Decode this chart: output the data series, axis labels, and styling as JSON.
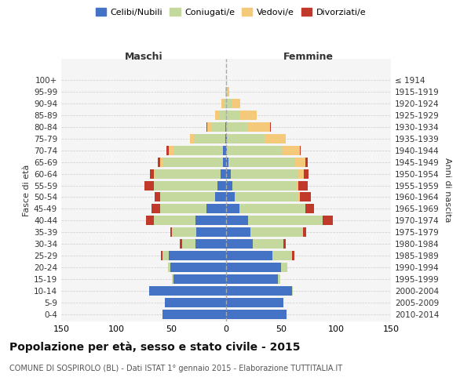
{
  "age_groups": [
    "0-4",
    "5-9",
    "10-14",
    "15-19",
    "20-24",
    "25-29",
    "30-34",
    "35-39",
    "40-44",
    "45-49",
    "50-54",
    "55-59",
    "60-64",
    "65-69",
    "70-74",
    "75-79",
    "80-84",
    "85-89",
    "90-94",
    "95-99",
    "100+"
  ],
  "birth_years": [
    "2010-2014",
    "2005-2009",
    "2000-2004",
    "1995-1999",
    "1990-1994",
    "1985-1989",
    "1980-1984",
    "1975-1979",
    "1970-1974",
    "1965-1969",
    "1960-1964",
    "1955-1959",
    "1950-1954",
    "1945-1949",
    "1940-1944",
    "1935-1939",
    "1930-1934",
    "1925-1929",
    "1920-1924",
    "1915-1919",
    "≤ 1914"
  ],
  "colors": {
    "celibi": "#4472C4",
    "coniugati": "#c5d89e",
    "vedovi": "#f5c97a",
    "divorziati": "#c0392b"
  },
  "males": {
    "celibi": [
      58,
      56,
      70,
      48,
      51,
      52,
      28,
      27,
      28,
      18,
      10,
      8,
      5,
      3,
      3,
      1,
      1,
      0,
      0,
      0,
      0
    ],
    "coniugati": [
      0,
      0,
      0,
      1,
      2,
      6,
      12,
      22,
      38,
      42,
      50,
      58,
      60,
      55,
      45,
      28,
      12,
      6,
      2,
      0,
      0
    ],
    "vedovi": [
      0,
      0,
      0,
      0,
      0,
      0,
      0,
      0,
      0,
      0,
      0,
      0,
      1,
      2,
      4,
      4,
      4,
      4,
      2,
      1,
      0
    ],
    "divorziati": [
      0,
      0,
      0,
      0,
      0,
      1,
      2,
      2,
      7,
      8,
      5,
      8,
      3,
      2,
      2,
      0,
      1,
      0,
      0,
      0,
      0
    ]
  },
  "females": {
    "nubili": [
      55,
      52,
      60,
      47,
      50,
      42,
      24,
      22,
      20,
      12,
      8,
      6,
      4,
      2,
      1,
      1,
      0,
      0,
      0,
      0,
      0
    ],
    "coniugate": [
      0,
      0,
      1,
      2,
      6,
      18,
      28,
      48,
      68,
      60,
      58,
      58,
      62,
      60,
      50,
      35,
      20,
      12,
      5,
      1,
      0
    ],
    "vedove": [
      0,
      0,
      0,
      0,
      0,
      0,
      0,
      0,
      0,
      0,
      1,
      2,
      5,
      10,
      16,
      18,
      20,
      16,
      8,
      2,
      0
    ],
    "divorziate": [
      0,
      0,
      0,
      0,
      0,
      2,
      2,
      3,
      9,
      8,
      10,
      8,
      4,
      2,
      1,
      0,
      1,
      0,
      0,
      0,
      0
    ]
  },
  "title": "Popolazione per età, sesso e stato civile - 2015",
  "subtitle": "COMUNE DI SOSPIROLO (BL) - Dati ISTAT 1° gennaio 2015 - Elaborazione TUTTITALIA.IT",
  "xlabel_left": "Maschi",
  "xlabel_right": "Femmine",
  "ylabel_left": "Fasce di età",
  "ylabel_right": "Anni di nascita",
  "xlim": 150,
  "bg_color": "#f5f5f5",
  "grid_color": "#cccccc"
}
